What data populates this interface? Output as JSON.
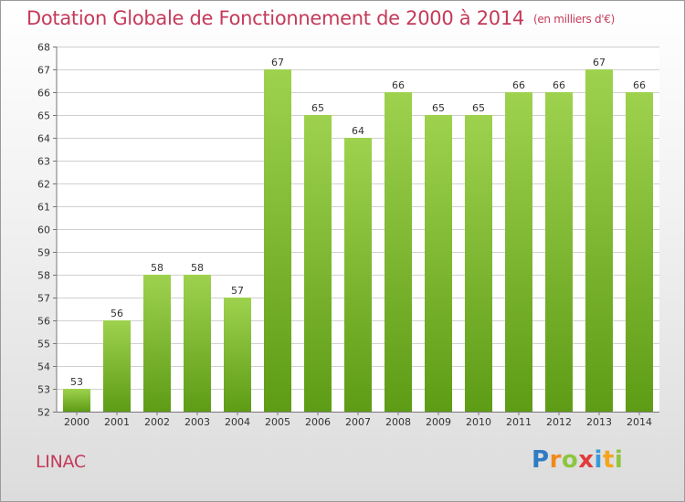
{
  "header": {
    "title": "Dotation Globale de Fonctionnement de 2000 à 2014",
    "unit": "(en milliers d'€)"
  },
  "footer": {
    "commune": "LINAC",
    "brand": "Proxiti"
  },
  "colors": {
    "title": "#c53a59",
    "bar_top": "#9ed24e",
    "bar_bottom": "#5e9c16",
    "grid": "#d0d0d0"
  },
  "chart_data": {
    "type": "bar",
    "categories": [
      "2000",
      "2001",
      "2002",
      "2003",
      "2004",
      "2005",
      "2006",
      "2007",
      "2008",
      "2009",
      "2010",
      "2011",
      "2012",
      "2013",
      "2014"
    ],
    "values": [
      53,
      56,
      58,
      58,
      57,
      67,
      65,
      64,
      66,
      65,
      65,
      66,
      66,
      67,
      66
    ],
    "ylim": [
      52,
      68
    ],
    "yticks": [
      52,
      53,
      54,
      55,
      56,
      57,
      58,
      59,
      60,
      61,
      62,
      63,
      64,
      65,
      66,
      67,
      68
    ],
    "grid": true,
    "data_labels": true
  }
}
